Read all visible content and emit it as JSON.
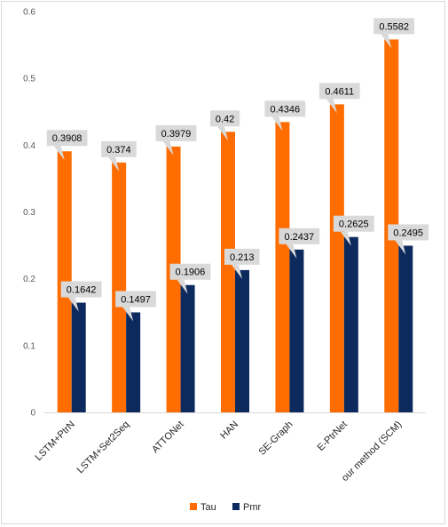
{
  "chart_data": {
    "type": "bar",
    "title": "",
    "xlabel": "",
    "ylabel": "",
    "ylim": [
      0,
      0.6
    ],
    "yticks": [
      "0",
      "0.1",
      "0.2",
      "0.3",
      "0.4",
      "0.5",
      "0.6"
    ],
    "grid": "none",
    "legend_position": "bottom",
    "categories": [
      "LSTM+PtrN",
      "LSTM+Set2Seq",
      "ATTONet",
      "HAN",
      "SE-Graph",
      "E-PtrNet",
      "our method (SCM)"
    ],
    "series": [
      {
        "name": "Tau",
        "color": "#ff6d00",
        "values": [
          0.3908,
          0.374,
          0.3979,
          0.42,
          0.4346,
          0.4611,
          0.5582
        ],
        "labels": [
          "0.3908",
          "0.374",
          "0.3979",
          "0.42",
          "0.4346",
          "0.4611",
          "0.5582"
        ]
      },
      {
        "name": "Pmr",
        "color": "#0d2a5e",
        "values": [
          0.1642,
          0.1497,
          0.1906,
          0.213,
          0.2437,
          0.2625,
          0.2495
        ],
        "labels": [
          "0.1642",
          "0.1497",
          "0.1906",
          "0.213",
          "0.2437",
          "0.2625",
          "0.2495"
        ]
      }
    ],
    "data_label_callout_color": "#d9d9d9"
  }
}
